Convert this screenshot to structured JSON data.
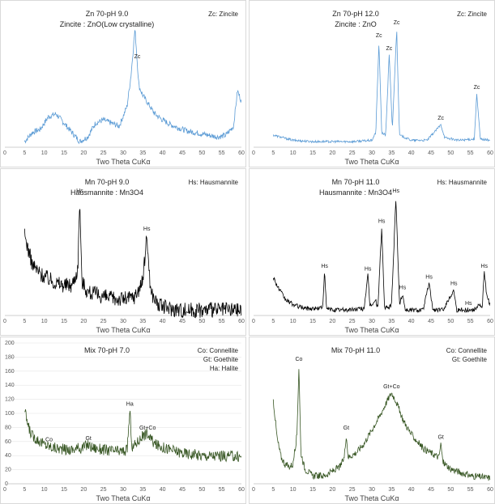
{
  "figure": {
    "xlabel": "Two Theta CuKα",
    "xticks": [
      "5",
      "10",
      "15",
      "20",
      "25",
      "30",
      "35",
      "40",
      "45",
      "50",
      "55",
      "60"
    ]
  },
  "colors": {
    "zn": "#5b9bd5",
    "mn": "#000000",
    "mix": "#375623",
    "axis": "#bfbfbf",
    "grid": "#e6e6e6"
  },
  "chart_data": [
    {
      "type": "line",
      "title": "Zn 70-pH 9.0",
      "subtitle": "Zincite : ZnO(Low crystalline)",
      "legend": [
        "Zc: Zincite"
      ],
      "legend_position": "top-right",
      "xlabel": "Two Theta CuKα",
      "xlim": [
        0,
        60
      ],
      "xticks": [
        0,
        5,
        10,
        15,
        20,
        25,
        30,
        35,
        40,
        45,
        50,
        55,
        60
      ],
      "ylabel": "",
      "series": [
        {
          "x": [
            5,
            7,
            9,
            11,
            13,
            15,
            17,
            19,
            21,
            23,
            25,
            27,
            29,
            31,
            32,
            33,
            34,
            35,
            36,
            38,
            40,
            42,
            44,
            46,
            48,
            50,
            52,
            54,
            56,
            58,
            59,
            60
          ],
          "y": [
            0.12,
            0.18,
            0.2,
            0.28,
            0.3,
            0.24,
            0.18,
            0.12,
            0.15,
            0.24,
            0.26,
            0.24,
            0.22,
            0.35,
            0.55,
            0.85,
            0.48,
            0.42,
            0.38,
            0.3,
            0.26,
            0.23,
            0.21,
            0.19,
            0.18,
            0.17,
            0.16,
            0.15,
            0.16,
            0.22,
            0.45,
            0.38
          ]
        }
      ],
      "peaks": [
        {
          "x": 33.6,
          "label": "Zc"
        }
      ]
    },
    {
      "type": "line",
      "title": "Zn 70-pH 12.0",
      "subtitle": "Zincite : ZnO",
      "legend": [
        "Zc: Zincite"
      ],
      "legend_position": "top-right",
      "xlabel": "Two Theta CuKα",
      "xlim": [
        0,
        60
      ],
      "xticks": [
        0,
        5,
        10,
        15,
        20,
        25,
        30,
        35,
        40,
        45,
        50,
        55,
        60
      ],
      "ylabel": "",
      "series": [
        {
          "x": [
            5,
            10,
            15,
            20,
            25,
            30,
            31,
            31.8,
            32.5,
            33.5,
            34.4,
            35.2,
            36.3,
            37,
            40,
            44,
            47.5,
            48.5,
            52,
            56,
            56.6,
            57.5,
            60
          ],
          "y": [
            0.1,
            0.06,
            0.05,
            0.05,
            0.05,
            0.06,
            0.12,
            0.82,
            0.12,
            0.1,
            0.72,
            0.15,
            0.92,
            0.1,
            0.06,
            0.06,
            0.18,
            0.08,
            0.06,
            0.07,
            0.42,
            0.07,
            0.06
          ]
        }
      ],
      "peaks": [
        {
          "x": 31.8,
          "label": "Zc"
        },
        {
          "x": 34.4,
          "label": "Zc"
        },
        {
          "x": 36.3,
          "label": "Zc"
        },
        {
          "x": 47.5,
          "label": "Zc"
        },
        {
          "x": 56.6,
          "label": "Zc"
        }
      ]
    },
    {
      "type": "line",
      "title": "Mn 70-pH 9.0",
      "subtitle": "Hausmannite : Mn3O4",
      "legend": [
        "Hs: Hausmannite"
      ],
      "legend_position": "top-right",
      "xlabel": "Two Theta CuKα",
      "xlim": [
        0,
        60
      ],
      "xticks": [
        0,
        5,
        10,
        15,
        20,
        25,
        30,
        35,
        40,
        45,
        50,
        55,
        60
      ],
      "ylabel": "",
      "series": [
        {
          "x": [
            5,
            7,
            9,
            11,
            13,
            15,
            17,
            18.5,
            19,
            19.5,
            21,
            23,
            25,
            27,
            29,
            31,
            33,
            35,
            36,
            37,
            39,
            41,
            45,
            50,
            55,
            60
          ],
          "y": [
            0.55,
            0.42,
            0.38,
            0.36,
            0.34,
            0.33,
            0.33,
            0.4,
            0.72,
            0.35,
            0.3,
            0.29,
            0.28,
            0.27,
            0.27,
            0.27,
            0.28,
            0.35,
            0.55,
            0.3,
            0.24,
            0.23,
            0.22,
            0.22,
            0.22,
            0.22
          ]
        }
      ],
      "peaks": [
        {
          "x": 19.0,
          "label": "Hs"
        },
        {
          "x": 36.0,
          "label": "Hs"
        }
      ]
    },
    {
      "type": "line",
      "title": "Mn 70-pH 11.0",
      "subtitle": "Hausmannite : Mn3O4",
      "legend": [
        "Hs: Hausmannite"
      ],
      "legend_position": "top-right",
      "xlabel": "Two Theta CuKα",
      "xlim": [
        0,
        60
      ],
      "xticks": [
        0,
        5,
        10,
        15,
        20,
        25,
        30,
        35,
        40,
        45,
        50,
        55,
        60
      ],
      "ylabel": "",
      "series": [
        {
          "x": [
            5,
            6,
            8,
            10,
            12,
            14,
            16,
            17.5,
            18,
            18.5,
            20,
            24,
            28,
            29,
            29.5,
            31,
            31.5,
            32.5,
            33.2,
            34,
            35,
            36.1,
            37,
            37.8,
            38.5,
            40,
            43,
            44.5,
            45.5,
            48,
            50.8,
            51.5,
            53,
            56,
            57,
            58,
            58.5,
            59.2,
            60
          ],
          "y": [
            0.35,
            0.28,
            0.18,
            0.14,
            0.12,
            0.11,
            0.11,
            0.12,
            0.38,
            0.11,
            0.1,
            0.1,
            0.11,
            0.36,
            0.13,
            0.17,
            0.11,
            0.72,
            0.12,
            0.11,
            0.14,
            0.95,
            0.14,
            0.22,
            0.1,
            0.1,
            0.1,
            0.3,
            0.1,
            0.1,
            0.25,
            0.1,
            0.1,
            0.1,
            0.14,
            0.12,
            0.38,
            0.2,
            0.14
          ]
        }
      ],
      "peaks": [
        {
          "x": 18.0,
          "label": "Hs"
        },
        {
          "x": 29.0,
          "label": "Hs"
        },
        {
          "x": 32.5,
          "label": "Hs"
        },
        {
          "x": 36.1,
          "label": "Hs"
        },
        {
          "x": 37.8,
          "label": "Hs"
        },
        {
          "x": 44.5,
          "label": "Hs"
        },
        {
          "x": 50.8,
          "label": "Hs"
        },
        {
          "x": 54.5,
          "label": "Hs"
        },
        {
          "x": 58.5,
          "label": "Hs"
        }
      ]
    },
    {
      "type": "line",
      "title": "Mix 70-pH 7.0",
      "subtitle": "",
      "legend": [
        "Co: Connellite",
        "Gt: Goethite",
        "Ha: Halite"
      ],
      "legend_position": "top-right",
      "xlabel": "Two Theta CuKα",
      "xlim": [
        0,
        60
      ],
      "xticks": [
        0,
        5,
        10,
        15,
        20,
        25,
        30,
        35,
        40,
        45,
        50,
        55,
        60
      ],
      "ylabel": "",
      "yticks": [
        "0",
        "20",
        "40",
        "60",
        "80",
        "100",
        "120",
        "140",
        "160",
        "180",
        "200"
      ],
      "series": [
        {
          "x": [
            5,
            6,
            7,
            8,
            10,
            12,
            14,
            16,
            18,
            20,
            21,
            22,
            24,
            26,
            28,
            30,
            31,
            31.7,
            32.3,
            33,
            35,
            36,
            37,
            38,
            40,
            45,
            50,
            55,
            60
          ],
          "y": [
            120,
            90,
            75,
            70,
            60,
            55,
            52,
            50,
            52,
            55,
            60,
            55,
            52,
            50,
            48,
            48,
            50,
            120,
            52,
            60,
            75,
            80,
            70,
            60,
            55,
            45,
            40,
            40,
            38
          ]
        }
      ],
      "peaks": [
        {
          "x": 11.2,
          "label": "Co"
        },
        {
          "x": 21.2,
          "label": "Gt"
        },
        {
          "x": 31.7,
          "label": "Ha"
        },
        {
          "x": 36.2,
          "label": "Gt+Co"
        }
      ]
    },
    {
      "type": "line",
      "title": "Mix 70-pH 11.0",
      "subtitle": "",
      "legend": [
        "Co: Connellite",
        "Gt: Goethite"
      ],
      "legend_position": "top-right",
      "xlabel": "Two Theta CuKα",
      "xlim": [
        0,
        60
      ],
      "xticks": [
        0,
        5,
        10,
        15,
        20,
        25,
        30,
        35,
        40,
        45,
        50,
        55,
        60
      ],
      "ylabel": "",
      "series": [
        {
          "x": [
            5,
            6,
            7,
            8,
            9,
            10,
            11,
            11.5,
            12,
            13,
            15,
            18,
            20,
            22,
            23,
            23.5,
            24,
            26,
            28,
            30,
            32,
            34,
            35,
            36,
            38,
            40,
            43,
            45,
            47,
            47.5,
            48,
            50,
            55,
            60
          ],
          "y": [
            0.55,
            0.38,
            0.3,
            0.27,
            0.26,
            0.27,
            0.4,
            0.7,
            0.32,
            0.25,
            0.22,
            0.22,
            0.24,
            0.26,
            0.3,
            0.4,
            0.3,
            0.32,
            0.36,
            0.42,
            0.48,
            0.55,
            0.58,
            0.55,
            0.46,
            0.4,
            0.34,
            0.32,
            0.3,
            0.36,
            0.28,
            0.25,
            0.22,
            0.21
          ]
        }
      ],
      "peaks": [
        {
          "x": 11.5,
          "label": "Co"
        },
        {
          "x": 23.5,
          "label": "Gt"
        },
        {
          "x": 35.0,
          "label": "Gt+Co"
        },
        {
          "x": 47.5,
          "label": "Gt"
        }
      ]
    }
  ]
}
